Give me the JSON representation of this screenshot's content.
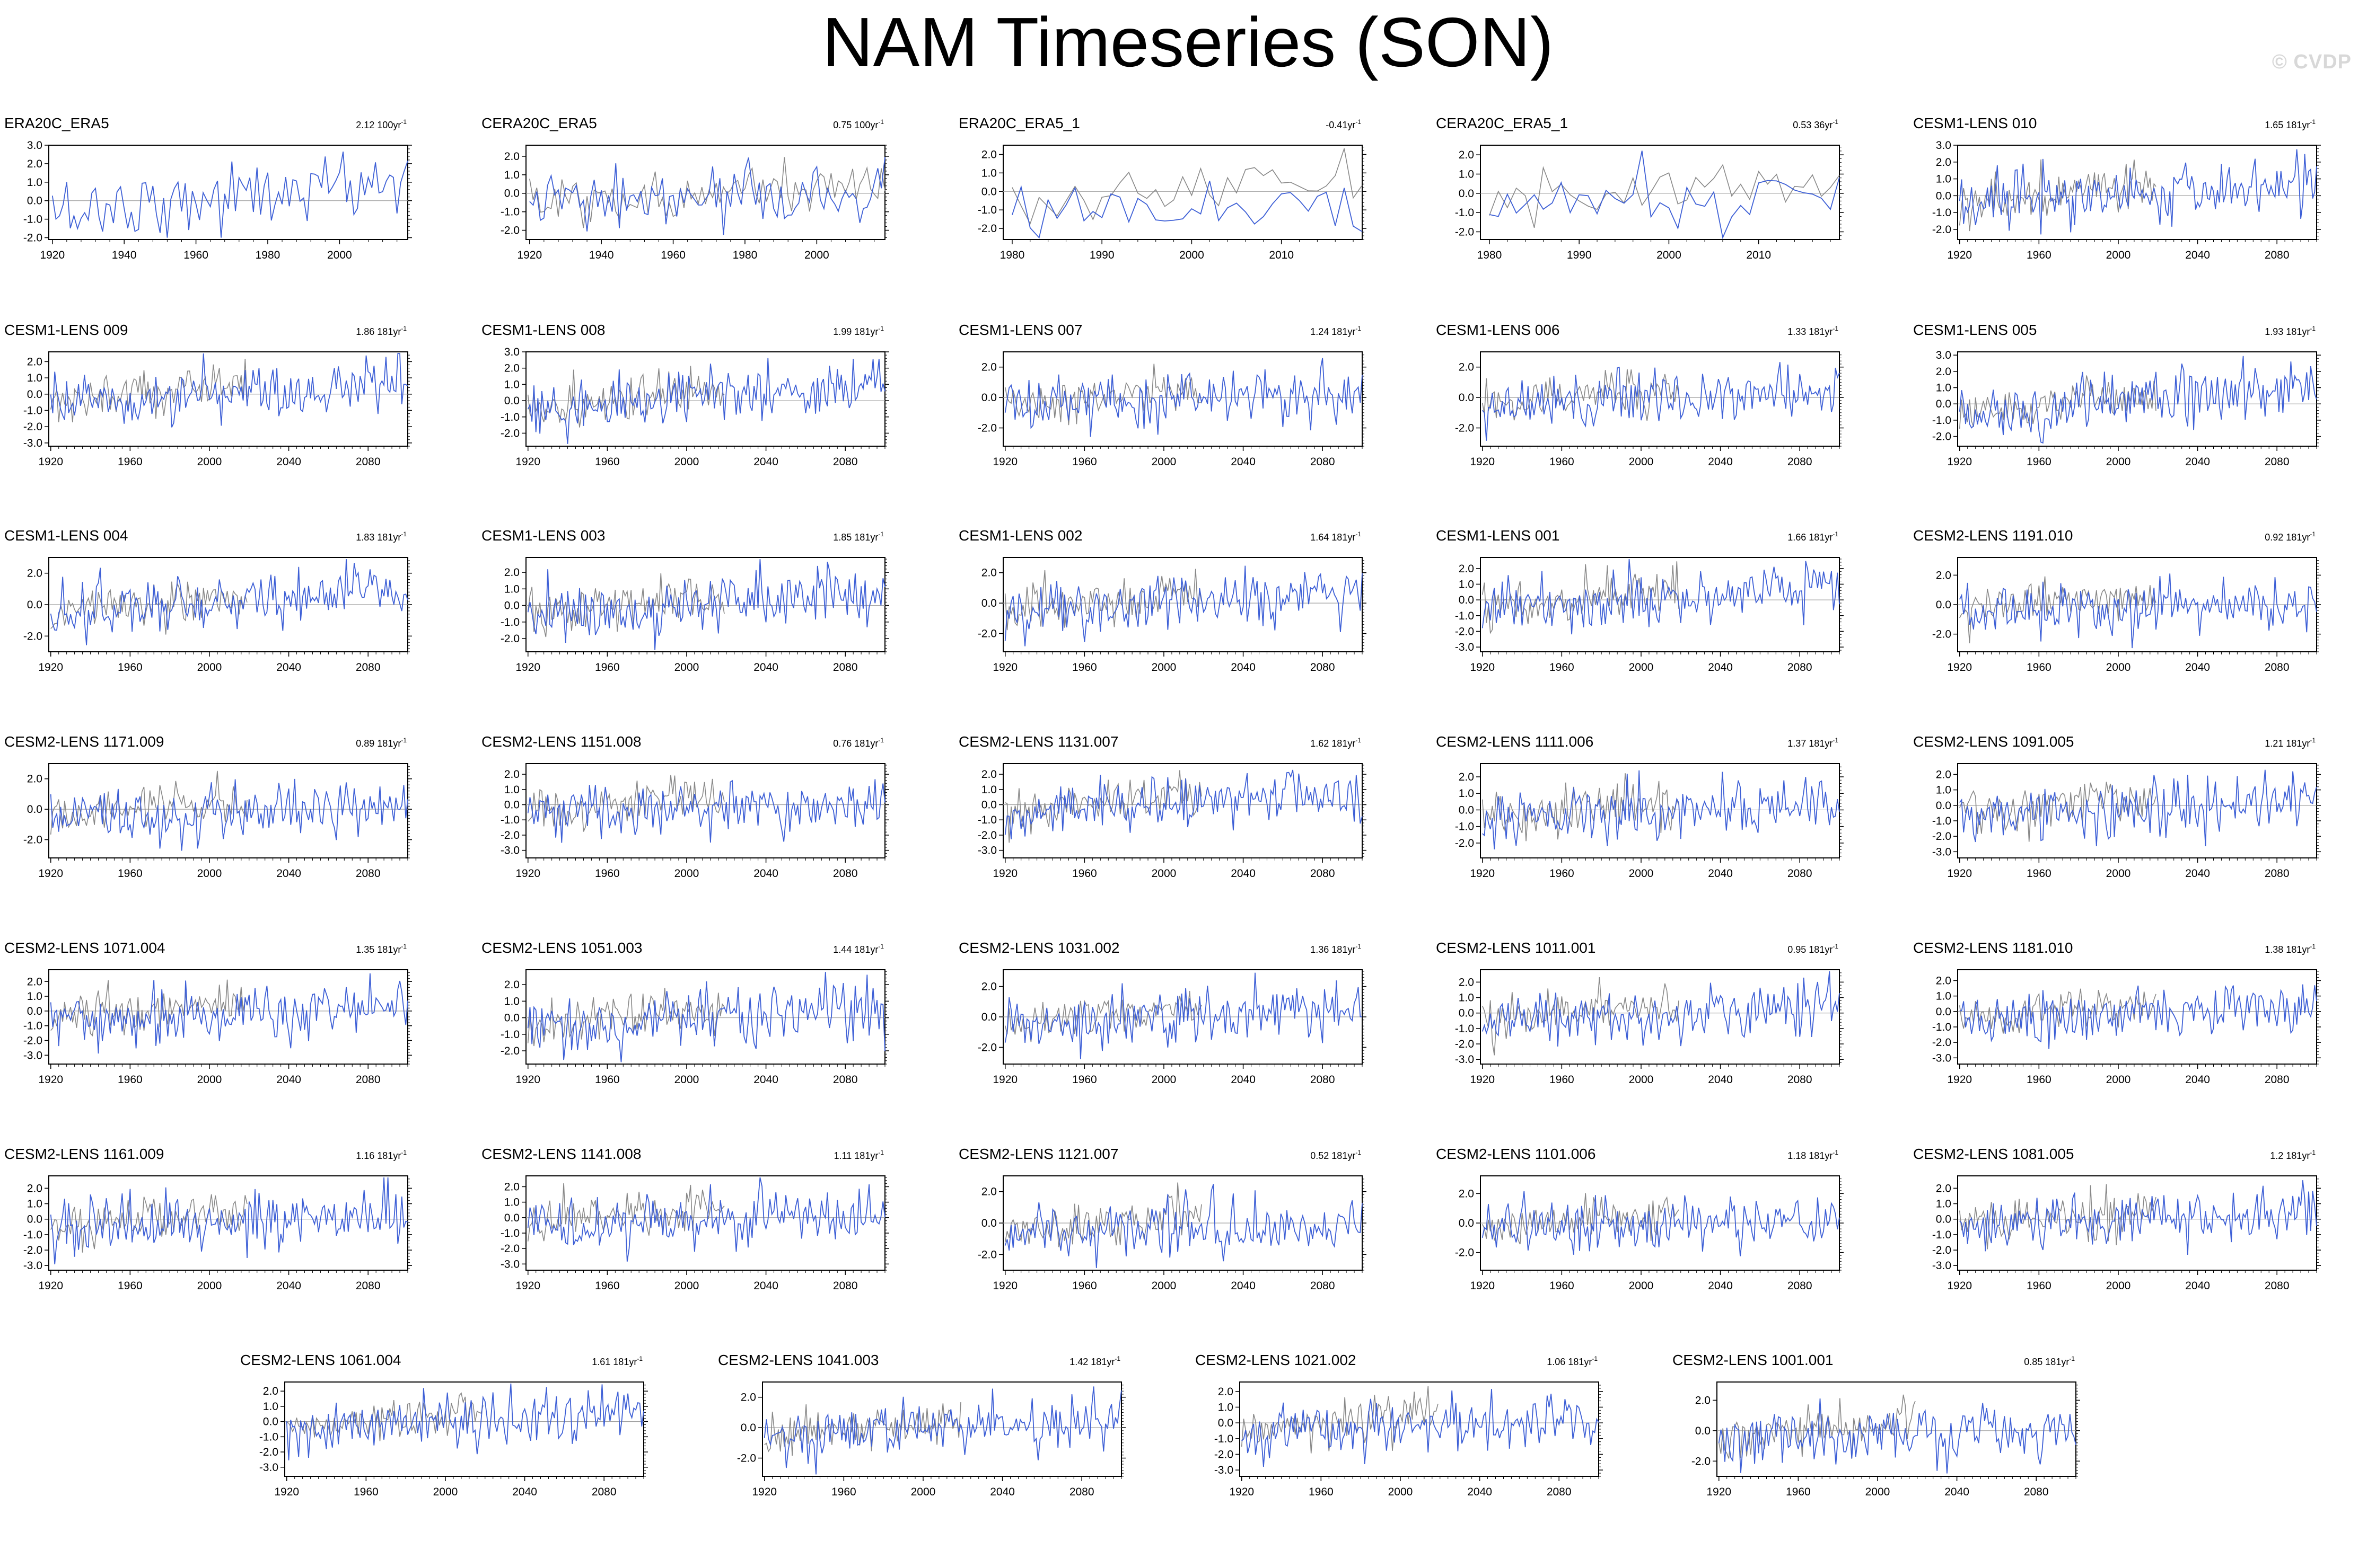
{
  "title": "NAM Timeseries (SON)",
  "watermark": "© CVDP",
  "colors": {
    "model": "#3d5fd6",
    "observation": "#888888",
    "zero_line": "#a0a0a0",
    "frame": "#000000"
  },
  "chart_data": [
    {
      "type": "line",
      "title": "ERA20C_ERA5",
      "trend": "2.12 100yr",
      "x_range": [
        1919,
        2019
      ],
      "x_ticks": [
        1920,
        1940,
        1960,
        1980,
        2000
      ],
      "y_ticks": [
        3.0,
        2.0,
        1.0,
        0.0,
        -1.0,
        -2.0
      ],
      "ylim": [
        -2.1,
        3.0
      ],
      "obs_overlay": false
    },
    {
      "type": "line",
      "title": "CERA20C_ERA5",
      "trend": "0.75 100yr",
      "x_range": [
        1919,
        2019
      ],
      "x_ticks": [
        1920,
        1940,
        1960,
        1980,
        2000
      ],
      "y_ticks": [
        2.0,
        1.0,
        0.0,
        -1.0,
        -2.0
      ],
      "ylim": [
        -2.5,
        2.6
      ],
      "obs_overlay": true
    },
    {
      "type": "line",
      "title": "ERA20C_ERA5_1",
      "trend": "-0.41yr",
      "x_range": [
        1979,
        2019
      ],
      "x_ticks": [
        1980,
        1990,
        2000,
        2010
      ],
      "y_ticks": [
        2.0,
        1.0,
        0.0,
        -1.0,
        -2.0
      ],
      "ylim": [
        -2.6,
        2.5
      ],
      "obs_overlay": true
    },
    {
      "type": "line",
      "title": "CERA20C_ERA5_1",
      "trend": "0.53 36yr",
      "x_range": [
        1979,
        2019
      ],
      "x_ticks": [
        1980,
        1990,
        2000,
        2010
      ],
      "y_ticks": [
        2.0,
        1.0,
        0.0,
        -1.0,
        -2.0
      ],
      "ylim": [
        -2.4,
        2.5
      ],
      "obs_overlay": true
    },
    {
      "type": "line",
      "title": "CESM1-LENS 010",
      "trend": "1.65 181yr",
      "x_range": [
        1919,
        2100
      ],
      "x_ticks": [
        1920,
        1960,
        2000,
        2040,
        2080
      ],
      "y_ticks": [
        3.0,
        2.0,
        1.0,
        0.0,
        -1.0,
        -2.0
      ],
      "ylim": [
        -2.6,
        3.0
      ],
      "obs_overlay": true
    },
    {
      "type": "line",
      "title": "CESM1-LENS 009",
      "trend": "1.86 181yr",
      "x_range": [
        1919,
        2100
      ],
      "x_ticks": [
        1920,
        1960,
        2000,
        2040,
        2080
      ],
      "y_ticks": [
        2.0,
        1.0,
        0.0,
        -1.0,
        -2.0,
        -3.0
      ],
      "ylim": [
        -3.2,
        2.6
      ],
      "obs_overlay": true
    },
    {
      "type": "line",
      "title": "CESM1-LENS 008",
      "trend": "1.99 181yr",
      "x_range": [
        1919,
        2100
      ],
      "x_ticks": [
        1920,
        1960,
        2000,
        2040,
        2080
      ],
      "y_ticks": [
        3.0,
        2.0,
        1.0,
        0.0,
        -1.0,
        -2.0
      ],
      "ylim": [
        -2.8,
        3.0
      ],
      "obs_overlay": true
    },
    {
      "type": "line",
      "title": "CESM1-LENS 007",
      "trend": "1.24 181yr",
      "x_range": [
        1919,
        2100
      ],
      "x_ticks": [
        1920,
        1960,
        2000,
        2040,
        2080
      ],
      "y_ticks": [
        2.0,
        0.0,
        -2.0
      ],
      "ylim": [
        -3.2,
        3.0
      ],
      "obs_overlay": true
    },
    {
      "type": "line",
      "title": "CESM1-LENS 006",
      "trend": "1.33 181yr",
      "x_range": [
        1919,
        2100
      ],
      "x_ticks": [
        1920,
        1960,
        2000,
        2040,
        2080
      ],
      "y_ticks": [
        2.0,
        0.0,
        -2.0
      ],
      "ylim": [
        -3.2,
        3.0
      ],
      "obs_overlay": true
    },
    {
      "type": "line",
      "title": "CESM1-LENS 005",
      "trend": "1.93 181yr",
      "x_range": [
        1919,
        2100
      ],
      "x_ticks": [
        1920,
        1960,
        2000,
        2040,
        2080
      ],
      "y_ticks": [
        3.0,
        2.0,
        1.0,
        0.0,
        -1.0,
        -2.0
      ],
      "ylim": [
        -2.6,
        3.2
      ],
      "obs_overlay": true
    },
    {
      "type": "line",
      "title": "CESM1-LENS 004",
      "trend": "1.83 181yr",
      "x_range": [
        1919,
        2100
      ],
      "x_ticks": [
        1920,
        1960,
        2000,
        2040,
        2080
      ],
      "y_ticks": [
        2.0,
        0.0,
        -2.0
      ],
      "ylim": [
        -3.0,
        3.0
      ],
      "obs_overlay": true
    },
    {
      "type": "line",
      "title": "CESM1-LENS 003",
      "trend": "1.85 181yr",
      "x_range": [
        1919,
        2100
      ],
      "x_ticks": [
        1920,
        1960,
        2000,
        2040,
        2080
      ],
      "y_ticks": [
        2.0,
        1.0,
        0.0,
        -1.0,
        -2.0
      ],
      "ylim": [
        -2.8,
        2.9
      ],
      "obs_overlay": true
    },
    {
      "type": "line",
      "title": "CESM1-LENS 002",
      "trend": "1.64 181yr",
      "x_range": [
        1919,
        2100
      ],
      "x_ticks": [
        1920,
        1960,
        2000,
        2040,
        2080
      ],
      "y_ticks": [
        2.0,
        0.0,
        -2.0
      ],
      "ylim": [
        -3.2,
        3.0
      ],
      "obs_overlay": true
    },
    {
      "type": "line",
      "title": "CESM1-LENS 001",
      "trend": "1.66 181yr",
      "x_range": [
        1919,
        2100
      ],
      "x_ticks": [
        1920,
        1960,
        2000,
        2040,
        2080
      ],
      "y_ticks": [
        2.0,
        1.0,
        0.0,
        -1.0,
        -2.0,
        -3.0
      ],
      "ylim": [
        -3.3,
        2.7
      ],
      "obs_overlay": true
    },
    {
      "type": "line",
      "title": "CESM2-LENS 1191.010",
      "trend": "0.92 181yr",
      "x_range": [
        1919,
        2100
      ],
      "x_ticks": [
        1920,
        1960,
        2000,
        2040,
        2080
      ],
      "y_ticks": [
        2.0,
        0.0,
        -2.0
      ],
      "ylim": [
        -3.2,
        3.2
      ],
      "obs_overlay": true
    },
    {
      "type": "line",
      "title": "CESM2-LENS 1171.009",
      "trend": "0.89 181yr",
      "x_range": [
        1919,
        2100
      ],
      "x_ticks": [
        1920,
        1960,
        2000,
        2040,
        2080
      ],
      "y_ticks": [
        2.0,
        0.0,
        -2.0
      ],
      "ylim": [
        -3.2,
        3.0
      ],
      "obs_overlay": true
    },
    {
      "type": "line",
      "title": "CESM2-LENS 1151.008",
      "trend": "0.76 181yr",
      "x_range": [
        1919,
        2100
      ],
      "x_ticks": [
        1920,
        1960,
        2000,
        2040,
        2080
      ],
      "y_ticks": [
        2.0,
        1.0,
        0.0,
        -1.0,
        -2.0,
        -3.0
      ],
      "ylim": [
        -3.5,
        2.7
      ],
      "obs_overlay": true
    },
    {
      "type": "line",
      "title": "CESM2-LENS 1131.007",
      "trend": "1.62 181yr",
      "x_range": [
        1919,
        2100
      ],
      "x_ticks": [
        1920,
        1960,
        2000,
        2040,
        2080
      ],
      "y_ticks": [
        2.0,
        1.0,
        0.0,
        -1.0,
        -2.0,
        -3.0
      ],
      "ylim": [
        -3.5,
        2.7
      ],
      "obs_overlay": true
    },
    {
      "type": "line",
      "title": "CESM2-LENS 1111.006",
      "trend": "1.37 181yr",
      "x_range": [
        1919,
        2100
      ],
      "x_ticks": [
        1920,
        1960,
        2000,
        2040,
        2080
      ],
      "y_ticks": [
        2.0,
        1.0,
        0.0,
        -1.0,
        -2.0
      ],
      "ylim": [
        -2.9,
        2.8
      ],
      "obs_overlay": true
    },
    {
      "type": "line",
      "title": "CESM2-LENS 1091.005",
      "trend": "1.21 181yr",
      "x_range": [
        1919,
        2100
      ],
      "x_ticks": [
        1920,
        1960,
        2000,
        2040,
        2080
      ],
      "y_ticks": [
        2.0,
        1.0,
        0.0,
        -1.0,
        -2.0,
        -3.0
      ],
      "ylim": [
        -3.4,
        2.7
      ],
      "obs_overlay": true
    },
    {
      "type": "line",
      "title": "CESM2-LENS 1071.004",
      "trend": "1.35 181yr",
      "x_range": [
        1919,
        2100
      ],
      "x_ticks": [
        1920,
        1960,
        2000,
        2040,
        2080
      ],
      "y_ticks": [
        2.0,
        1.0,
        0.0,
        -1.0,
        -2.0,
        -3.0
      ],
      "ylim": [
        -3.6,
        2.8
      ],
      "obs_overlay": true
    },
    {
      "type": "line",
      "title": "CESM2-LENS 1051.003",
      "trend": "1.44 181yr",
      "x_range": [
        1919,
        2100
      ],
      "x_ticks": [
        1920,
        1960,
        2000,
        2040,
        2080
      ],
      "y_ticks": [
        2.0,
        1.0,
        0.0,
        -1.0,
        -2.0
      ],
      "ylim": [
        -2.8,
        2.9
      ],
      "obs_overlay": true
    },
    {
      "type": "line",
      "title": "CESM2-LENS 1031.002",
      "trend": "1.36 181yr",
      "x_range": [
        1919,
        2100
      ],
      "x_ticks": [
        1920,
        1960,
        2000,
        2040,
        2080
      ],
      "y_ticks": [
        2.0,
        0.0,
        -2.0
      ],
      "ylim": [
        -3.1,
        3.1
      ],
      "obs_overlay": true
    },
    {
      "type": "line",
      "title": "CESM2-LENS 1011.001",
      "trend": "0.95 181yr",
      "x_range": [
        1919,
        2100
      ],
      "x_ticks": [
        1920,
        1960,
        2000,
        2040,
        2080
      ],
      "y_ticks": [
        2.0,
        1.0,
        0.0,
        -1.0,
        -2.0,
        -3.0
      ],
      "ylim": [
        -3.3,
        2.8
      ],
      "obs_overlay": true
    },
    {
      "type": "line",
      "title": "CESM2-LENS 1181.010",
      "trend": "1.38 181yr",
      "x_range": [
        1919,
        2100
      ],
      "x_ticks": [
        1920,
        1960,
        2000,
        2040,
        2080
      ],
      "y_ticks": [
        2.0,
        1.0,
        0.0,
        -1.0,
        -2.0,
        -3.0
      ],
      "ylim": [
        -3.4,
        2.7
      ],
      "obs_overlay": true
    },
    {
      "type": "line",
      "title": "CESM2-LENS 1161.009",
      "trend": "1.16 181yr",
      "x_range": [
        1919,
        2100
      ],
      "x_ticks": [
        1920,
        1960,
        2000,
        2040,
        2080
      ],
      "y_ticks": [
        2.0,
        1.0,
        0.0,
        -1.0,
        -2.0,
        -3.0
      ],
      "ylim": [
        -3.3,
        2.8
      ],
      "obs_overlay": true
    },
    {
      "type": "line",
      "title": "CESM2-LENS 1141.008",
      "trend": "1.11 181yr",
      "x_range": [
        1919,
        2100
      ],
      "x_ticks": [
        1920,
        1960,
        2000,
        2040,
        2080
      ],
      "y_ticks": [
        2.0,
        1.0,
        0.0,
        -1.0,
        -2.0,
        -3.0
      ],
      "ylim": [
        -3.4,
        2.7
      ],
      "obs_overlay": true
    },
    {
      "type": "line",
      "title": "CESM2-LENS 1121.007",
      "trend": "0.52 181yr",
      "x_range": [
        1919,
        2100
      ],
      "x_ticks": [
        1920,
        1960,
        2000,
        2040,
        2080
      ],
      "y_ticks": [
        2.0,
        0.0,
        -2.0
      ],
      "ylim": [
        -3.0,
        3.0
      ],
      "obs_overlay": true
    },
    {
      "type": "line",
      "title": "CESM2-LENS 1101.006",
      "trend": "1.18 181yr",
      "x_range": [
        1919,
        2100
      ],
      "x_ticks": [
        1920,
        1960,
        2000,
        2040,
        2080
      ],
      "y_ticks": [
        2.0,
        0.0,
        -2.0
      ],
      "ylim": [
        -3.2,
        3.2
      ],
      "obs_overlay": true
    },
    {
      "type": "line",
      "title": "CESM2-LENS 1081.005",
      "trend": "1.2 181yr",
      "x_range": [
        1919,
        2100
      ],
      "x_ticks": [
        1920,
        1960,
        2000,
        2040,
        2080
      ],
      "y_ticks": [
        2.0,
        1.0,
        0.0,
        -1.0,
        -2.0,
        -3.0
      ],
      "ylim": [
        -3.3,
        2.8
      ],
      "obs_overlay": true
    },
    {
      "type": "line",
      "title": "CESM2-LENS 1061.004",
      "trend": "1.61 181yr",
      "x_range": [
        1919,
        2100
      ],
      "x_ticks": [
        1920,
        1960,
        2000,
        2040,
        2080
      ],
      "y_ticks": [
        2.0,
        1.0,
        0.0,
        -1.0,
        -2.0,
        -3.0
      ],
      "ylim": [
        -3.6,
        2.6
      ],
      "obs_overlay": true
    },
    {
      "type": "line",
      "title": "CESM2-LENS 1041.003",
      "trend": "1.42 181yr",
      "x_range": [
        1919,
        2100
      ],
      "x_ticks": [
        1920,
        1960,
        2000,
        2040,
        2080
      ],
      "y_ticks": [
        2.0,
        0.0,
        -2.0
      ],
      "ylim": [
        -3.2,
        3.0
      ],
      "obs_overlay": true
    },
    {
      "type": "line",
      "title": "CESM2-LENS 1021.002",
      "trend": "1.06 181yr",
      "x_range": [
        1919,
        2100
      ],
      "x_ticks": [
        1920,
        1960,
        2000,
        2040,
        2080
      ],
      "y_ticks": [
        2.0,
        1.0,
        0.0,
        -1.0,
        -2.0,
        -3.0
      ],
      "ylim": [
        -3.4,
        2.6
      ],
      "obs_overlay": true
    },
    {
      "type": "line",
      "title": "CESM2-LENS 1001.001",
      "trend": "0.85 181yr",
      "x_range": [
        1919,
        2100
      ],
      "x_ticks": [
        1920,
        1960,
        2000,
        2040,
        2080
      ],
      "y_ticks": [
        2.0,
        0.0,
        -2.0
      ],
      "ylim": [
        -3.0,
        3.2
      ],
      "obs_overlay": true
    }
  ]
}
